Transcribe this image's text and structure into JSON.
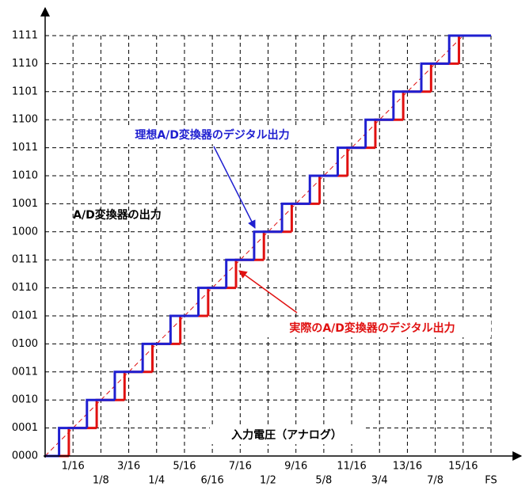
{
  "chart_data": {
    "type": "step",
    "x_label": "入力電圧（アナログ）",
    "y_label": "A/D変換器の出力",
    "annotations": [
      {
        "text": "理想A/D変換器のデジタル出力",
        "color": "#1f1fd0"
      },
      {
        "text": "実際のA/D変換器のデジタル出力",
        "color": "#e01010"
      }
    ],
    "xlim": [
      0,
      16
    ],
    "ylim": [
      0,
      15
    ],
    "xticks": [
      {
        "value": 1,
        "label": "1/16"
      },
      {
        "value": 2,
        "label": "1/8"
      },
      {
        "value": 3,
        "label": "3/16"
      },
      {
        "value": 4,
        "label": "1/4"
      },
      {
        "value": 5,
        "label": "5/16"
      },
      {
        "value": 6,
        "label": "6/16"
      },
      {
        "value": 7,
        "label": "7/16"
      },
      {
        "value": 8,
        "label": "1/2"
      },
      {
        "value": 9,
        "label": "9/16"
      },
      {
        "value": 10,
        "label": "5/8"
      },
      {
        "value": 11,
        "label": "11/16"
      },
      {
        "value": 12,
        "label": "3/4"
      },
      {
        "value": 13,
        "label": "13/16"
      },
      {
        "value": 14,
        "label": "7/8"
      },
      {
        "value": 15,
        "label": "15/16"
      },
      {
        "value": 16,
        "label": "FS"
      }
    ],
    "yticks": [
      {
        "value": 0,
        "label": "0000"
      },
      {
        "value": 1,
        "label": "0001"
      },
      {
        "value": 2,
        "label": "0010"
      },
      {
        "value": 3,
        "label": "0011"
      },
      {
        "value": 4,
        "label": "0100"
      },
      {
        "value": 5,
        "label": "0101"
      },
      {
        "value": 6,
        "label": "0110"
      },
      {
        "value": 7,
        "label": "0111"
      },
      {
        "value": 8,
        "label": "1000"
      },
      {
        "value": 9,
        "label": "1001"
      },
      {
        "value": 10,
        "label": "1010"
      },
      {
        "value": 11,
        "label": "1011"
      },
      {
        "value": 12,
        "label": "1100"
      },
      {
        "value": 13,
        "label": "1101"
      },
      {
        "value": 14,
        "label": "1110"
      },
      {
        "value": 15,
        "label": "1111"
      }
    ],
    "grid": true,
    "series": [
      {
        "color": "#1f1fd0",
        "x": [
          0,
          0.5,
          1.5,
          2.5,
          3.5,
          4.5,
          5.5,
          6.5,
          7.5,
          8.5,
          9.5,
          10.5,
          11.5,
          12.5,
          13.5,
          14.5
        ],
        "values": [
          0,
          1,
          2,
          3,
          4,
          5,
          6,
          7,
          8,
          9,
          10,
          11,
          12,
          13,
          14,
          15
        ]
      },
      {
        "color": "#e01010",
        "x": [
          0,
          0.85,
          1.85,
          2.85,
          3.85,
          4.85,
          5.85,
          6.85,
          7.85,
          8.85,
          9.85,
          10.85,
          11.85,
          12.85,
          13.85,
          14.85
        ],
        "values": [
          0,
          1,
          2,
          3,
          4,
          5,
          6,
          7,
          8,
          9,
          10,
          11,
          12,
          13,
          14,
          15
        ]
      }
    ]
  }
}
